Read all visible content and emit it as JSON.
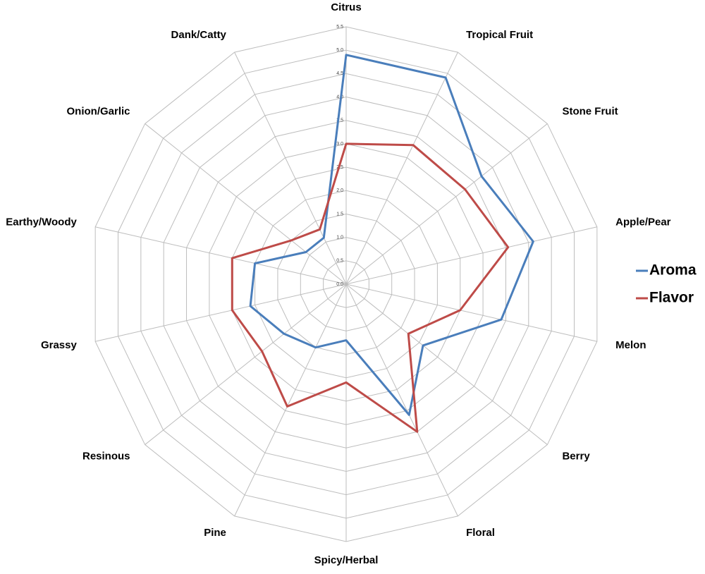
{
  "chart_data": {
    "type": "radar",
    "categories": [
      "Citrus",
      "Tropical Fruit",
      "Stone Fruit",
      "Apple/Pear",
      "Melon",
      "Berry",
      "Floral",
      "Spicy/Herbal",
      "Pine",
      "Resinous",
      "Grassy",
      "Earthy/Woody",
      "Onion/Garlic",
      "Dank/Catty"
    ],
    "series": [
      {
        "name": "Aroma",
        "color": "#4a7ebb",
        "values": [
          4.9,
          4.9,
          3.7,
          4.1,
          3.4,
          2.1,
          3.1,
          1.2,
          1.5,
          1.7,
          2.1,
          2.0,
          1.1,
          1.1
        ]
      },
      {
        "name": "Flavor",
        "color": "#be4b48",
        "values": [
          3.0,
          3.3,
          3.25,
          3.55,
          2.5,
          1.7,
          3.5,
          2.1,
          2.9,
          2.3,
          2.5,
          2.5,
          1.5,
          1.3
        ]
      }
    ],
    "ylim": [
      0,
      5.5
    ],
    "yticks": [
      {
        "value": 0,
        "label": "0.0"
      },
      0.5,
      {
        "value": 1,
        "label": "1.0"
      },
      1.5,
      {
        "value": 2,
        "label": "2.0"
      },
      2.5,
      {
        "value": 3,
        "label": "3.0"
      },
      3.5,
      {
        "value": 4,
        "label": "4.0"
      },
      4.5,
      {
        "value": 5,
        "label": "5.0"
      },
      5.5
    ],
    "grid": true,
    "legend": "right"
  }
}
